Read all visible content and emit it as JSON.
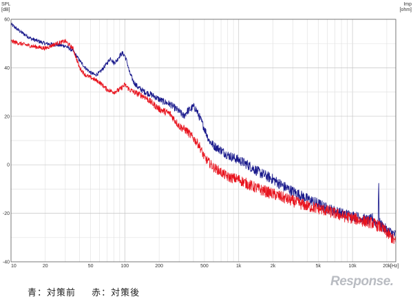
{
  "chart_data": {
    "type": "line",
    "y_left_label": "SPL",
    "y_left_unit": "[dB]",
    "y_right_label": "Imp",
    "y_right_unit": "[ohm]",
    "x_unit": "[Hz]",
    "x_scale": "log",
    "xlim": [
      10,
      24000
    ],
    "ylim": [
      -40,
      60
    ],
    "grid": true,
    "x_ticks": [
      {
        "v": 10,
        "label": "10"
      },
      {
        "v": 20,
        "label": "20"
      },
      {
        "v": 50,
        "label": "50"
      },
      {
        "v": 100,
        "label": "100"
      },
      {
        "v": 200,
        "label": "200"
      },
      {
        "v": 500,
        "label": "500"
      },
      {
        "v": 1000,
        "label": "1k"
      },
      {
        "v": 2000,
        "label": "2k"
      },
      {
        "v": 5000,
        "label": "5k"
      },
      {
        "v": 10000,
        "label": "10k"
      },
      {
        "v": 20000,
        "label": "20k"
      }
    ],
    "y_ticks": [
      {
        "v": 60,
        "label": "60"
      },
      {
        "v": 40,
        "label": "40"
      },
      {
        "v": 20,
        "label": "20"
      },
      {
        "v": 0,
        "label": "0"
      },
      {
        "v": -20,
        "label": "-20"
      },
      {
        "v": -40,
        "label": "-40"
      }
    ],
    "series": [
      {
        "color": "#1a1a8c",
        "noise_db": 2.2,
        "points": [
          [
            10,
            58
          ],
          [
            12,
            55
          ],
          [
            15,
            52
          ],
          [
            20,
            50
          ],
          [
            25,
            49.5
          ],
          [
            30,
            49
          ],
          [
            35,
            47
          ],
          [
            40,
            43
          ],
          [
            45,
            40
          ],
          [
            50,
            38
          ],
          [
            55,
            37
          ],
          [
            60,
            38
          ],
          [
            65,
            40
          ],
          [
            70,
            42
          ],
          [
            75,
            44
          ],
          [
            80,
            42
          ],
          [
            85,
            43
          ],
          [
            90,
            45
          ],
          [
            95,
            46
          ],
          [
            100,
            45
          ],
          [
            105,
            42
          ],
          [
            110,
            38
          ],
          [
            120,
            34
          ],
          [
            130,
            32
          ],
          [
            150,
            30
          ],
          [
            170,
            29
          ],
          [
            200,
            27
          ],
          [
            220,
            26
          ],
          [
            250,
            25
          ],
          [
            300,
            22
          ],
          [
            330,
            20
          ],
          [
            350,
            22
          ],
          [
            380,
            23
          ],
          [
            400,
            24
          ],
          [
            420,
            23
          ],
          [
            450,
            20
          ],
          [
            500,
            15
          ],
          [
            550,
            10
          ],
          [
            600,
            8
          ],
          [
            700,
            6
          ],
          [
            800,
            4
          ],
          [
            1000,
            2
          ],
          [
            1200,
            0
          ],
          [
            1500,
            -3
          ],
          [
            2000,
            -6
          ],
          [
            2500,
            -9
          ],
          [
            3000,
            -11
          ],
          [
            4000,
            -14
          ],
          [
            5000,
            -16
          ],
          [
            6000,
            -18
          ],
          [
            7000,
            -19
          ],
          [
            8000,
            -20
          ],
          [
            10000,
            -21
          ],
          [
            12000,
            -22
          ],
          [
            14000,
            -23
          ],
          [
            15000,
            -22
          ],
          [
            16000,
            -24
          ],
          [
            16800,
            -24
          ],
          [
            17000,
            -6
          ],
          [
            17200,
            -24
          ],
          [
            18000,
            -25
          ],
          [
            20000,
            -27
          ],
          [
            22000,
            -28
          ],
          [
            24000,
            -29
          ]
        ]
      },
      {
        "color": "#e8141e",
        "noise_db": 2.4,
        "points": [
          [
            10,
            51
          ],
          [
            12,
            50
          ],
          [
            15,
            49
          ],
          [
            20,
            48
          ],
          [
            25,
            50
          ],
          [
            30,
            51
          ],
          [
            35,
            48
          ],
          [
            40,
            40
          ],
          [
            45,
            37
          ],
          [
            50,
            36
          ],
          [
            55,
            35
          ],
          [
            60,
            34
          ],
          [
            70,
            31
          ],
          [
            80,
            30
          ],
          [
            90,
            31
          ],
          [
            100,
            33
          ],
          [
            110,
            31
          ],
          [
            120,
            30
          ],
          [
            150,
            28
          ],
          [
            200,
            23
          ],
          [
            250,
            21
          ],
          [
            300,
            16
          ],
          [
            350,
            14
          ],
          [
            400,
            11
          ],
          [
            450,
            8
          ],
          [
            500,
            3
          ],
          [
            600,
            -1
          ],
          [
            700,
            -3
          ],
          [
            800,
            -5
          ],
          [
            1000,
            -6
          ],
          [
            1200,
            -8
          ],
          [
            1500,
            -10
          ],
          [
            2000,
            -12
          ],
          [
            3000,
            -15
          ],
          [
            4000,
            -17
          ],
          [
            5000,
            -18
          ],
          [
            6000,
            -19
          ],
          [
            7000,
            -20
          ],
          [
            8000,
            -21
          ],
          [
            10000,
            -22
          ],
          [
            12000,
            -23
          ],
          [
            15000,
            -24
          ],
          [
            18000,
            -26
          ],
          [
            20000,
            -28
          ],
          [
            22000,
            -30
          ],
          [
            24000,
            -32
          ]
        ]
      }
    ]
  },
  "caption": {
    "blue_label": "青：対策前",
    "red_label": "赤：対策後"
  },
  "watermark": "Response."
}
